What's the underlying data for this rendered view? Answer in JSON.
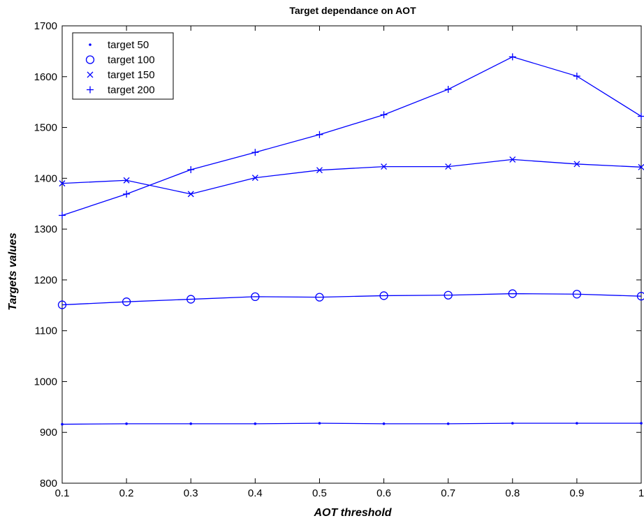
{
  "chart_data": {
    "type": "line",
    "title": "Target dependance on AOT",
    "xlabel": "AOT threshold",
    "ylabel": "Targets values",
    "x": [
      0.1,
      0.2,
      0.3,
      0.4,
      0.5,
      0.6,
      0.7,
      0.8,
      0.9,
      1.0
    ],
    "xlim": [
      0.1,
      1.0
    ],
    "ylim": [
      800,
      1700
    ],
    "xticks": [
      0.1,
      0.2,
      0.3,
      0.4,
      0.5,
      0.6,
      0.7,
      0.8,
      0.9,
      1.0
    ],
    "xtick_labels": [
      "0.1",
      "0.2",
      "0.3",
      "0.4",
      "0.5",
      "0.6",
      "0.7",
      "0.8",
      "0.9",
      "1"
    ],
    "yticks": [
      800,
      900,
      1000,
      1100,
      1200,
      1300,
      1400,
      1500,
      1600,
      1700
    ],
    "ytick_labels": [
      "800",
      "900",
      "1000",
      "1100",
      "1200",
      "1300",
      "1400",
      "1500",
      "1600",
      "1700"
    ],
    "grid": false,
    "legend_position": "top-left",
    "line_color": "#0000ff",
    "series": [
      {
        "name": "target 50",
        "marker": "dot",
        "values": [
          916,
          917,
          917,
          917,
          918,
          917,
          917,
          918,
          918,
          918
        ]
      },
      {
        "name": "target 100",
        "marker": "circle",
        "values": [
          1151,
          1157,
          1162,
          1167,
          1166,
          1169,
          1170,
          1173,
          1172,
          1168
        ]
      },
      {
        "name": "target 150",
        "marker": "x",
        "values": [
          1390,
          1396,
          1369,
          1401,
          1416,
          1423,
          1423,
          1437,
          1428,
          1422
        ]
      },
      {
        "name": "target 200",
        "marker": "plus",
        "values": [
          1327,
          1369,
          1417,
          1451,
          1486,
          1525,
          1575,
          1639,
          1601,
          1522
        ]
      }
    ]
  }
}
